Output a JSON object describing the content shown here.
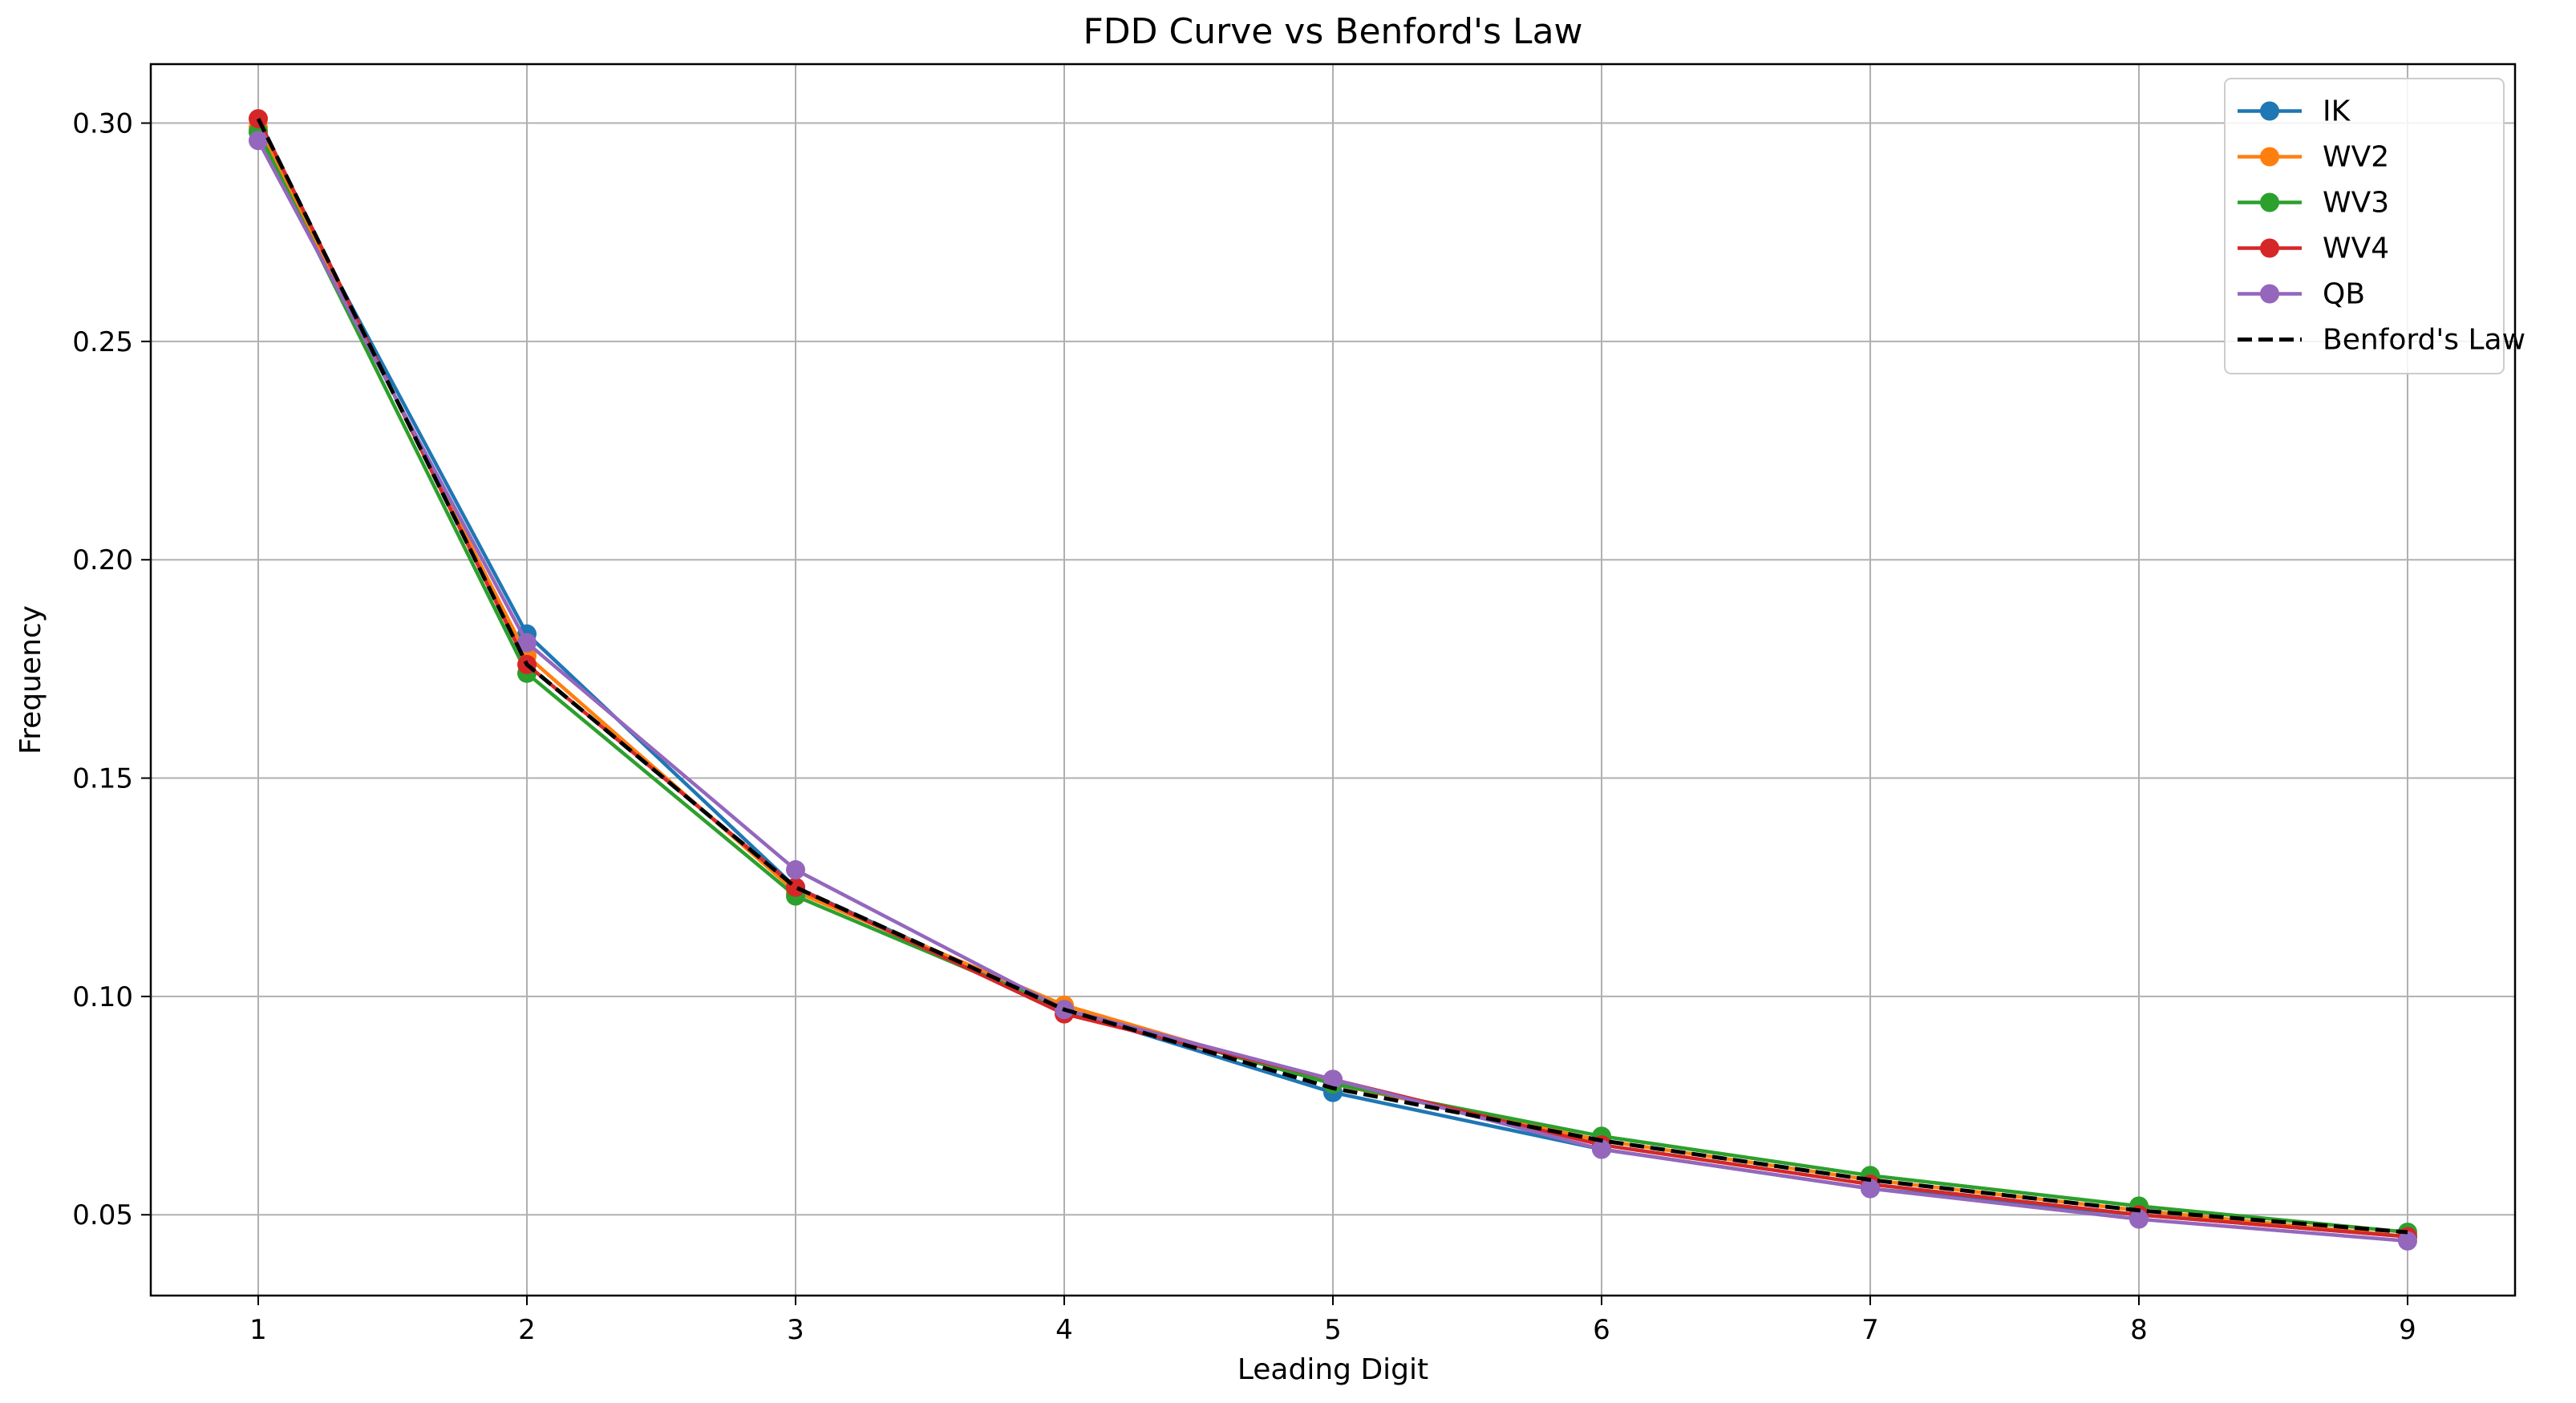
{
  "chart_data": {
    "type": "line",
    "title": "FDD Curve vs Benford's Law",
    "xlabel": "Leading Digit",
    "ylabel": "Frequency",
    "x": [
      1,
      2,
      3,
      4,
      5,
      6,
      7,
      8,
      9
    ],
    "x_ticks": [
      "1",
      "2",
      "3",
      "4",
      "5",
      "6",
      "7",
      "8",
      "9"
    ],
    "y_ticks": [
      "0.05",
      "0.10",
      "0.15",
      "0.20",
      "0.25",
      "0.30"
    ],
    "xlim": [
      0.6,
      9.4
    ],
    "ylim": [
      0.0315,
      0.3135
    ],
    "grid": true,
    "legend_position": "top-right",
    "series": [
      {
        "name": "IK",
        "color": "#1f77b4",
        "marker": "circle",
        "style": "solid",
        "values": [
          0.298,
          0.183,
          0.125,
          0.097,
          0.078,
          0.065,
          0.056,
          0.05,
          0.045
        ]
      },
      {
        "name": "WV2",
        "color": "#ff7f0e",
        "marker": "circle",
        "style": "solid",
        "values": [
          0.299,
          0.178,
          0.124,
          0.098,
          0.08,
          0.067,
          0.058,
          0.051,
          0.045
        ]
      },
      {
        "name": "WV3",
        "color": "#2ca02c",
        "marker": "circle",
        "style": "solid",
        "values": [
          0.298,
          0.174,
          0.123,
          0.097,
          0.08,
          0.068,
          0.059,
          0.052,
          0.046
        ]
      },
      {
        "name": "WV4",
        "color": "#d62728",
        "marker": "circle",
        "style": "solid",
        "values": [
          0.301,
          0.176,
          0.125,
          0.096,
          0.081,
          0.066,
          0.057,
          0.05,
          0.045
        ]
      },
      {
        "name": "QB",
        "color": "#9467bd",
        "marker": "circle",
        "style": "solid",
        "values": [
          0.296,
          0.181,
          0.129,
          0.097,
          0.081,
          0.065,
          0.056,
          0.049,
          0.044
        ]
      },
      {
        "name": "Benford's Law",
        "color": "#000000",
        "marker": "none",
        "style": "dashed",
        "values": [
          0.301,
          0.176,
          0.125,
          0.097,
          0.079,
          0.067,
          0.058,
          0.051,
          0.046
        ]
      }
    ]
  }
}
